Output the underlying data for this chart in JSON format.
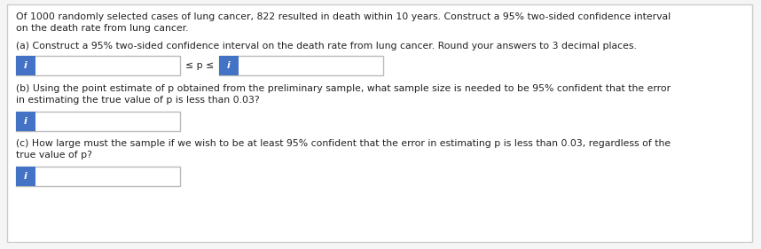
{
  "bg_color": "#f5f5f5",
  "box_fill": "#ffffff",
  "box_border": "#bbbbbb",
  "icon_fill": "#4472c4",
  "icon_text_color": "#ffffff",
  "text_color": "#222222",
  "font_size": 7.8,
  "intro_text_line1": "Of 1000 randomly selected cases of lung cancer, 822 resulted in death within 10 years. Construct a 95% two-sided confidence interval",
  "intro_text_line2": "on the death rate from lung cancer.",
  "part_a_label": "(a) Construct a 95% two-sided confidence interval on the death rate from lung cancer. Round your answers to 3 decimal places.",
  "part_b_label_line1": "(b) Using the point estimate of p obtained from the preliminary sample, what sample size is needed to be 95% confident that the error",
  "part_b_label_line2": "in estimating the true value of p is less than 0.03?",
  "part_c_label_line1": "(c) How large must the sample if we wish to be at least 95% confident that the error in estimating p is less than 0.03, regardless of the",
  "part_c_label_line2": "true value of p?",
  "leq_p_leq": "≤ p ≤",
  "icon_char": "i"
}
